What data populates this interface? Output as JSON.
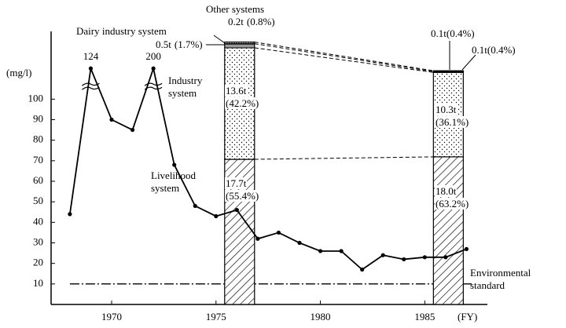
{
  "chart_data": [
    {
      "type": "line",
      "ylabel": "(mg/l)",
      "xlabel": "(FY)",
      "x": [
        1968,
        1969,
        1970,
        1971,
        1972,
        1973,
        1974,
        1975,
        1976,
        1977,
        1978,
        1979,
        1980,
        1981,
        1982,
        1983,
        1984,
        1985,
        1986,
        1987
      ],
      "values": [
        44,
        124,
        90,
        85,
        200,
        68,
        48,
        43,
        46,
        32,
        35,
        30,
        26,
        26,
        17,
        24,
        22,
        23,
        23,
        27
      ],
      "color": "#000000",
      "xlim": [
        1967.1,
        1988
      ],
      "xticks": [
        1970,
        1975,
        1980,
        1985
      ],
      "ylim": [
        0,
        133
      ],
      "yticks": [
        10,
        20,
        30,
        40,
        50,
        60,
        70,
        80,
        90,
        100
      ],
      "axis_break": 105,
      "reference_line": {
        "value": 10,
        "label": "Environmental standard",
        "style": "dash-dot"
      }
    },
    {
      "type": "bar",
      "x": [
        1975,
        1985
      ],
      "ylim": [
        0,
        33.3
      ],
      "series": [
        {
          "name": "Livelihood system",
          "color": "#000000",
          "pattern": "hatch",
          "values": [
            17.7,
            18.0
          ],
          "value_labels": [
            "17.7t",
            "18.0t"
          ],
          "shares": [
            55.4,
            63.2
          ],
          "share_labels": [
            "(55.4%)",
            "(63.2%)"
          ]
        },
        {
          "name": "Industry system",
          "color": "#000000",
          "pattern": "dots",
          "values": [
            13.6,
            10.3
          ],
          "value_labels": [
            "13.6t",
            "10.3t"
          ],
          "shares": [
            42.2,
            36.1
          ],
          "share_labels": [
            "(42.2%)",
            "(36.1%)"
          ]
        },
        {
          "name": "Dairy industry system",
          "color": "#000000",
          "pattern": "hlines",
          "values": [
            0.5,
            0.1
          ],
          "value_labels": [
            "0.5t",
            "0.1t"
          ],
          "shares": [
            1.7,
            0.4
          ],
          "share_labels": [
            "(1.7%)",
            "(0.4%)"
          ]
        },
        {
          "name": "Other systems",
          "color": "#000000",
          "pattern": "vlines",
          "values": [
            0.2,
            0.1
          ],
          "value_labels": [
            "0.2t",
            "0.1t"
          ],
          "shares": [
            0.8,
            0.4
          ],
          "share_labels": [
            "(0.8%)",
            "(0.4%)"
          ]
        }
      ]
    }
  ]
}
